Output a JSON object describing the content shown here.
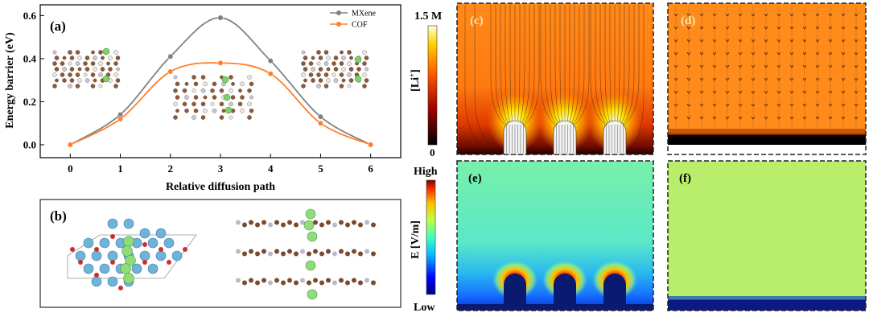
{
  "chart_data": [
    {
      "type": "line",
      "panel_label": "(a)",
      "xlabel": "Relative diffusion path",
      "ylabel": "Energy barrier (eV)",
      "xlim": [
        -0.6,
        6.6
      ],
      "ylim": [
        -0.06,
        0.65
      ],
      "x": [
        0,
        1,
        2,
        3,
        4,
        5,
        6
      ],
      "xticks": [
        "0",
        "1",
        "2",
        "3",
        "4",
        "5",
        "6"
      ],
      "yticks": [
        "0.0",
        "0.2",
        "0.4",
        "0.6"
      ],
      "legend_position": "top-right",
      "series": [
        {
          "name": "MXene",
          "color": "#808080",
          "values": [
            0.0,
            0.14,
            0.41,
            0.59,
            0.39,
            0.13,
            0.0
          ]
        },
        {
          "name": "COF",
          "color": "#ff7f27",
          "values": [
            0.0,
            0.12,
            0.34,
            0.38,
            0.33,
            0.1,
            0.0
          ]
        }
      ]
    },
    {
      "type": "heatmap",
      "panel_label": "(c)",
      "colorbar_label": "[Li+]",
      "colorbar_max": "1.5 M",
      "colorbar_min": "0",
      "description_values": {
        "dendrite_count": 3
      }
    },
    {
      "type": "heatmap",
      "panel_label": "(d)"
    },
    {
      "type": "heatmap",
      "panel_label": "(e)",
      "colorbar_label": "E [V/m]",
      "colorbar_max": "High",
      "colorbar_min": "Low"
    },
    {
      "type": "heatmap",
      "panel_label": "(f)"
    }
  ],
  "panel_b": {
    "label": "(b)"
  },
  "colors": {
    "mxene": "#808080",
    "cof": "#ff7f27",
    "li": "#7fd26a",
    "orange_field": "#ff8c1a",
    "efield_bg": "#7df2a8",
    "efield_flat": "#b8ee6a"
  }
}
